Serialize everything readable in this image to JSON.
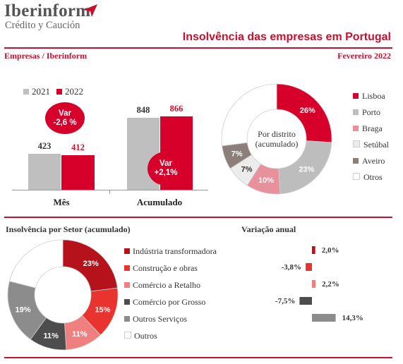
{
  "header": {
    "logo_name": "Iberinform",
    "logo_tagline": "Crédito y Caución",
    "title": "Insolvência das empresas em Portugal",
    "subtitle_left": "Empresas / Iberinform",
    "subtitle_right": "Fevereiro 2022"
  },
  "colors": {
    "brand_red": "#c8102e",
    "grey_2021": "#bfbfbf",
    "red_2022": "#d6002a"
  },
  "chart_data": [
    {
      "type": "bar",
      "categories": [
        "Mês",
        "Acumulado"
      ],
      "series": [
        {
          "name": "2021",
          "values": [
            423,
            848
          ]
        },
        {
          "name": "2022",
          "values": [
            412,
            866
          ]
        }
      ],
      "annotations": [
        {
          "category": "Mês",
          "line1": "Var",
          "line2": "-2,6 %"
        },
        {
          "category": "Acumulado",
          "line1": "Var",
          "line2": "+2,1%"
        }
      ],
      "ylim": [
        0,
        1000
      ],
      "legend": "top"
    },
    {
      "type": "pie",
      "center_label": [
        "Por distrito",
        "(acumulado)"
      ],
      "slices": [
        {
          "label": "Lisboa",
          "value": 26,
          "text": "26%",
          "color": "#d6002a"
        },
        {
          "label": "Porto",
          "value": 23,
          "text": "23%",
          "color": "#bdbdbd"
        },
        {
          "label": "Braga",
          "value": 10,
          "text": "10%",
          "color": "#e8909c"
        },
        {
          "label": "Setúbal",
          "value": 7,
          "text": "7%",
          "color": "#ececec"
        },
        {
          "label": "Aveiro",
          "value": 7,
          "text": "7%",
          "color": "#8c7f7a"
        },
        {
          "label": "Otros",
          "value": 27,
          "text": "",
          "color": "#ffffff"
        }
      ],
      "legend": "right"
    },
    {
      "type": "pie",
      "title": "Insolvência por Setor (acumulado)",
      "slices": [
        {
          "label": "Indústria transformadora",
          "value": 23,
          "text": "23%",
          "color": "#b5121b"
        },
        {
          "label": "Construção e obras",
          "value": 15,
          "text": "15%",
          "color": "#e8332f"
        },
        {
          "label": "Comércio a Retalho",
          "value": 11,
          "text": "11%",
          "color": "#f08080"
        },
        {
          "label": "Comércio por Grosso",
          "value": 11,
          "text": "11%",
          "color": "#4d4d4d"
        },
        {
          "label": "Outros Serviços",
          "value": 19,
          "text": "19%",
          "color": "#8c8c8c"
        },
        {
          "label": "Outros",
          "value": 21,
          "text": "",
          "color": "#ffffff"
        }
      ],
      "legend": "right"
    },
    {
      "type": "bar",
      "title": "Variação anual",
      "orientation": "horizontal",
      "categories": [
        "Indústria transformadora",
        "Construção e obras",
        "Comércio a Retalho",
        "Comércio por Grosso",
        "Outros Serviços"
      ],
      "values": [
        2.0,
        -3.8,
        2.2,
        -7.5,
        14.3
      ],
      "labels": [
        "2,0%",
        "-3,8%",
        "2,2%",
        "-7,5%",
        "14,3%"
      ],
      "colors": [
        "#b5121b",
        "#e8332f",
        "#f08080",
        "#4d4d4d",
        "#8c8c8c"
      ]
    }
  ]
}
